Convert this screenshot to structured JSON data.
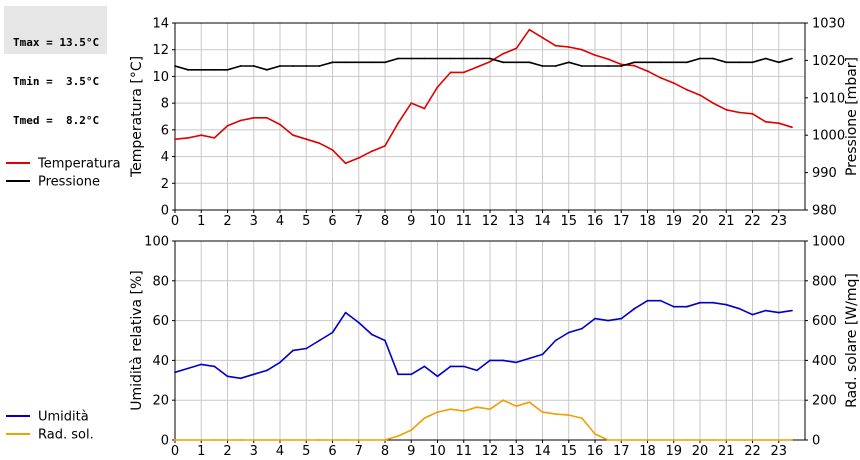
{
  "stats": {
    "tmax": "Tmax = 13.5°C",
    "tmin": "Tmin =  3.5°C",
    "tmed": "Tmed =  8.2°C"
  },
  "colors": {
    "temperature": "#e00000",
    "pressure": "#000000",
    "humidity": "#0000c8",
    "solar": "#f0a000",
    "grid": "#c8c8c8"
  },
  "chart_data": [
    {
      "type": "line",
      "x": [
        0,
        0.5,
        1,
        1.5,
        2,
        2.5,
        3,
        3.5,
        4,
        4.5,
        5,
        5.5,
        6,
        6.5,
        7,
        7.5,
        8,
        8.5,
        9,
        9.5,
        10,
        10.5,
        11,
        11.5,
        12,
        12.5,
        13,
        13.5,
        14,
        14.5,
        15,
        15.5,
        16,
        16.5,
        17,
        17.5,
        18,
        18.5,
        19,
        19.5,
        20,
        20.5,
        21,
        21.5,
        22,
        22.5,
        23,
        23.5
      ],
      "xlim": [
        0,
        24
      ],
      "xticks": [
        "0",
        "1",
        "2",
        "3",
        "4",
        "5",
        "6",
        "7",
        "8",
        "9",
        "10",
        "11",
        "12",
        "13",
        "14",
        "15",
        "16",
        "17",
        "18",
        "19",
        "20",
        "21",
        "22",
        "23"
      ],
      "ylabel": "Temperatura [°C]",
      "ylim": [
        0,
        14
      ],
      "yticks": [
        "0",
        "2",
        "4",
        "6",
        "8",
        "10",
        "12",
        "14"
      ],
      "y2label": "Pressione [mbar]",
      "y2lim": [
        980,
        1030
      ],
      "y2ticks": [
        "980",
        "990",
        "1000",
        "1010",
        "1020",
        "1030"
      ],
      "grid": true,
      "legend_position": "left",
      "series": [
        {
          "name": "Temperatura",
          "axis": "left",
          "values": [
            5.3,
            5.4,
            5.6,
            5.4,
            6.3,
            6.7,
            6.9,
            6.9,
            6.4,
            5.6,
            5.3,
            5.0,
            4.5,
            3.5,
            3.9,
            4.4,
            4.8,
            6.5,
            8.0,
            7.6,
            9.2,
            10.3,
            10.3,
            10.7,
            11.1,
            11.7,
            12.1,
            13.5,
            12.9,
            12.3,
            12.2,
            12.0,
            11.6,
            11.3,
            10.9,
            10.8,
            10.4,
            9.9,
            9.5,
            9.0,
            8.6,
            8.0,
            7.5,
            7.3,
            7.2,
            6.6,
            6.5,
            6.2
          ]
        },
        {
          "name": "Pressione",
          "axis": "right",
          "values": [
            1018.5,
            1017.5,
            1017.5,
            1017.5,
            1017.5,
            1018.5,
            1018.5,
            1017.5,
            1018.5,
            1018.5,
            1018.5,
            1018.5,
            1019.5,
            1019.5,
            1019.5,
            1019.5,
            1019.5,
            1020.5,
            1020.5,
            1020.5,
            1020.5,
            1020.5,
            1020.5,
            1020.5,
            1020.5,
            1019.5,
            1019.5,
            1019.5,
            1018.5,
            1018.5,
            1019.5,
            1018.5,
            1018.5,
            1018.5,
            1018.5,
            1019.5,
            1019.5,
            1019.5,
            1019.5,
            1019.5,
            1020.5,
            1020.5,
            1019.5,
            1019.5,
            1019.5,
            1020.5,
            1019.5,
            1020.5
          ]
        }
      ]
    },
    {
      "type": "line",
      "x": [
        0,
        0.5,
        1,
        1.5,
        2,
        2.5,
        3,
        3.5,
        4,
        4.5,
        5,
        5.5,
        6,
        6.5,
        7,
        7.5,
        8,
        8.5,
        9,
        9.5,
        10,
        10.5,
        11,
        11.5,
        12,
        12.5,
        13,
        13.5,
        14,
        14.5,
        15,
        15.5,
        16,
        16.5,
        17,
        17.5,
        18,
        18.5,
        19,
        19.5,
        20,
        20.5,
        21,
        21.5,
        22,
        22.5,
        23,
        23.5
      ],
      "xlim": [
        0,
        24
      ],
      "xticks": [
        "0",
        "1",
        "2",
        "3",
        "4",
        "5",
        "6",
        "7",
        "8",
        "9",
        "10",
        "11",
        "12",
        "13",
        "14",
        "15",
        "16",
        "17",
        "18",
        "19",
        "20",
        "21",
        "22",
        "23"
      ],
      "ylabel": "Umidità relativa [%]",
      "ylim": [
        0,
        100
      ],
      "yticks": [
        "0",
        "20",
        "40",
        "60",
        "80",
        "100"
      ],
      "y2label": "Rad. solare [W/mq]",
      "y2lim": [
        0,
        1000
      ],
      "y2ticks": [
        "0",
        "200",
        "400",
        "600",
        "800",
        "1000"
      ],
      "grid": true,
      "legend_position": "left",
      "series": [
        {
          "name": "Umidità",
          "axis": "left",
          "values": [
            34,
            36,
            38,
            37,
            32,
            31,
            33,
            35,
            39,
            45,
            46,
            50,
            54,
            64,
            59,
            53,
            50,
            33,
            33,
            37,
            32,
            37,
            37,
            35,
            40,
            40,
            39,
            41,
            43,
            50,
            54,
            56,
            61,
            60,
            61,
            66,
            70,
            70,
            67,
            67,
            69,
            69,
            68,
            66,
            63,
            65,
            64,
            65
          ]
        },
        {
          "name": "Rad. sol.",
          "axis": "right",
          "values": [
            0,
            0,
            0,
            0,
            0,
            0,
            0,
            0,
            0,
            0,
            0,
            0,
            0,
            0,
            0,
            0,
            0,
            20,
            50,
            110,
            140,
            155,
            145,
            165,
            155,
            200,
            170,
            190,
            140,
            130,
            125,
            110,
            30,
            0,
            0,
            0,
            0,
            0,
            0,
            0,
            0,
            0,
            0,
            0,
            0,
            0,
            0,
            0
          ]
        }
      ]
    }
  ]
}
